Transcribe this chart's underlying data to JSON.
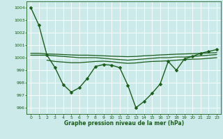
{
  "xlabel": "Graphe pression niveau de la mer (hPa)",
  "background_color": "#cceaea",
  "grid_color": "#aad4d4",
  "line_color": "#1a5c1a",
  "xlim": [
    -0.5,
    23.5
  ],
  "ylim": [
    995.5,
    1004.5
  ],
  "yticks": [
    996,
    997,
    998,
    999,
    1000,
    1001,
    1002,
    1003,
    1004
  ],
  "xticks": [
    0,
    1,
    2,
    3,
    4,
    5,
    6,
    7,
    8,
    9,
    10,
    11,
    12,
    13,
    14,
    15,
    16,
    17,
    18,
    19,
    20,
    21,
    22,
    23
  ],
  "series": [
    {
      "x": [
        0,
        1,
        2,
        3,
        4,
        5,
        6,
        7,
        8,
        9,
        10,
        11,
        12,
        13,
        14,
        15,
        16,
        17,
        18,
        19,
        20,
        21,
        22,
        23
      ],
      "y": [
        1004.0,
        1002.6,
        1000.2,
        999.2,
        997.85,
        997.25,
        997.6,
        998.35,
        999.3,
        999.45,
        999.4,
        999.2,
        997.8,
        996.0,
        996.5,
        997.15,
        997.9,
        999.7,
        999.0,
        999.9,
        1000.1,
        1000.35,
        1000.5,
        1000.65
      ],
      "marker": "D",
      "markersize": 2.5,
      "linewidth": 1.0
    },
    {
      "x": [
        0,
        1,
        2,
        3,
        4,
        5,
        6,
        7,
        8,
        9,
        10,
        11,
        12,
        13,
        14,
        15,
        16,
        17,
        18,
        19,
        20,
        21,
        22,
        23
      ],
      "y": [
        1000.2,
        1000.2,
        1000.2,
        1000.15,
        1000.1,
        1000.05,
        1000.0,
        1000.0,
        1000.0,
        999.95,
        999.9,
        999.85,
        999.8,
        999.85,
        999.9,
        999.95,
        1000.0,
        1000.0,
        1000.05,
        1000.05,
        1000.1,
        1000.15,
        1000.2,
        1000.25
      ],
      "marker": null,
      "linewidth": 0.9
    },
    {
      "x": [
        0,
        1,
        2,
        3,
        4,
        5,
        6,
        7,
        8,
        9,
        10,
        11,
        12,
        13,
        14,
        15,
        16,
        17,
        18,
        19,
        20,
        21,
        22,
        23
      ],
      "y": [
        1000.35,
        1000.35,
        1000.3,
        1000.28,
        1000.25,
        1000.22,
        1000.2,
        1000.2,
        1000.18,
        1000.15,
        1000.12,
        1000.1,
        1000.08,
        1000.1,
        1000.15,
        1000.18,
        1000.22,
        1000.25,
        1000.28,
        1000.3,
        1000.32,
        1000.35,
        1000.38,
        1000.4
      ],
      "marker": null,
      "linewidth": 0.9
    },
    {
      "x": [
        2,
        3,
        4,
        5,
        6,
        7,
        8,
        9,
        10,
        11,
        12,
        13,
        14,
        15,
        16,
        17,
        18,
        19,
        20,
        21,
        22,
        23
      ],
      "y": [
        999.8,
        999.7,
        999.65,
        999.6,
        999.6,
        999.65,
        999.7,
        999.72,
        999.68,
        999.6,
        999.55,
        999.58,
        999.65,
        999.7,
        999.72,
        999.75,
        999.8,
        999.85,
        999.88,
        999.9,
        999.95,
        1000.0
      ],
      "marker": null,
      "linewidth": 0.9
    }
  ]
}
